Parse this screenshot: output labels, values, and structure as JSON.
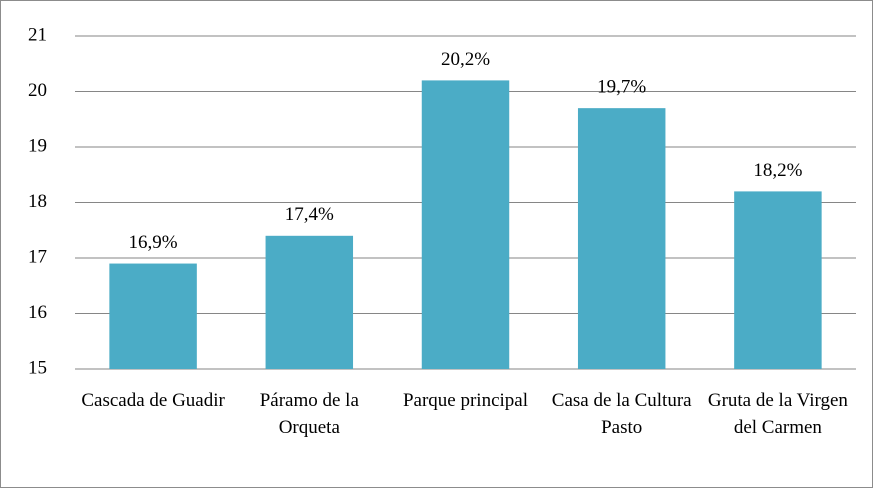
{
  "chart_data": {
    "type": "bar",
    "categories": [
      "Cascada de Guadir",
      "Páramo de la Orqueta",
      "Parque principal",
      "Casa de la Cultura Pasto",
      "Gruta de la Virgen del Carmen"
    ],
    "values": [
      16.9,
      17.4,
      20.2,
      19.7,
      18.2
    ],
    "value_labels": [
      "16,9%",
      "17,4%",
      "20,2%",
      "19,7%",
      "18,2%"
    ],
    "color": "#4bacc6",
    "ylim": [
      15,
      21
    ],
    "yticks": [
      15,
      16,
      17,
      18,
      19,
      20,
      21
    ],
    "grid": true
  }
}
